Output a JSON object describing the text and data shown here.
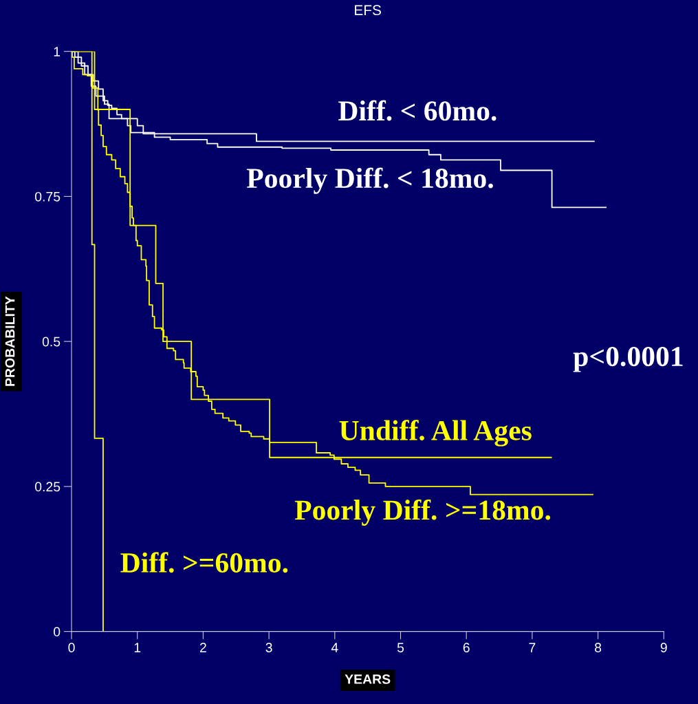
{
  "chart_data": {
    "type": "step",
    "title": "EFS",
    "xlabel": "YEARS",
    "ylabel": "PROBABILITY",
    "xlim": [
      0,
      9
    ],
    "ylim": [
      0,
      1
    ],
    "xticks": [
      0,
      1,
      2,
      3,
      4,
      5,
      6,
      7,
      8,
      9
    ],
    "yticks": [
      0,
      0.25,
      0.5,
      0.75,
      1
    ],
    "grid": false,
    "legend": false,
    "marker": "none",
    "line_style": "solid",
    "annotations": [
      "p<0.0001"
    ],
    "series": [
      {
        "name": "Diff. < 60mo.",
        "color": "#ffffff",
        "x": [
          0,
          0.1,
          0.2,
          0.3,
          0.37,
          0.5,
          0.57,
          1.0,
          1.09,
          2.81,
          7.94
        ],
        "values": [
          1,
          0.98,
          0.96,
          0.94,
          0.923,
          0.909,
          0.884,
          0.872,
          0.858,
          0.845,
          0.845
        ]
      },
      {
        "name": "Poorly Diff. < 18mo.",
        "color": "#ffffff",
        "x": [
          0,
          0.05,
          0.15,
          0.25,
          0.33,
          0.41,
          0.48,
          0.55,
          0.61,
          0.69,
          0.76,
          0.85,
          0.9,
          1.26,
          1.5,
          2.06,
          2.22,
          3.2,
          3.94,
          5.43,
          5.61,
          6.52,
          7.3,
          8.12
        ],
        "values": [
          1,
          0.99,
          0.975,
          0.96,
          0.949,
          0.935,
          0.915,
          0.907,
          0.902,
          0.891,
          0.884,
          0.872,
          0.86,
          0.852,
          0.848,
          0.841,
          0.835,
          0.833,
          0.83,
          0.822,
          0.813,
          0.795,
          0.731,
          0.731
        ]
      },
      {
        "name": "Undiff. All Ages",
        "color": "#ffff00",
        "x": [
          0,
          0.35,
          0.89,
          1.28,
          1.39,
          1.82,
          3.01,
          7.29
        ],
        "values": [
          1,
          0.9,
          0.7,
          0.6,
          0.5,
          0.4,
          0.3,
          0.3
        ]
      },
      {
        "name": "Poorly Diff. >=18mo.",
        "color": "#ffff00",
        "x": [
          0,
          0.01,
          0.04,
          0.17,
          0.24,
          0.32,
          0.4,
          0.41,
          0.45,
          0.48,
          0.53,
          0.61,
          0.67,
          0.74,
          0.81,
          0.85,
          0.89,
          0.92,
          0.94,
          0.98,
          1.0,
          1.06,
          1.13,
          1.14,
          1.18,
          1.23,
          1.26,
          1.37,
          1.4,
          1.45,
          1.55,
          1.58,
          1.7,
          1.71,
          1.81,
          1.89,
          1.91,
          2.0,
          2.02,
          2.08,
          2.13,
          2.18,
          2.3,
          2.39,
          2.49,
          2.57,
          2.7,
          2.73,
          2.92,
          3.01,
          3.72,
          3.93,
          3.99,
          4.1,
          4.2,
          4.31,
          4.39,
          4.52,
          4.77,
          6.06,
          7.92
        ],
        "values": [
          1,
          0.99,
          0.97,
          0.96,
          0.958,
          0.937,
          0.899,
          0.873,
          0.855,
          0.836,
          0.822,
          0.813,
          0.798,
          0.784,
          0.772,
          0.757,
          0.733,
          0.713,
          0.7,
          0.674,
          0.665,
          0.641,
          0.63,
          0.605,
          0.563,
          0.543,
          0.523,
          0.52,
          0.508,
          0.488,
          0.484,
          0.469,
          0.463,
          0.454,
          0.448,
          0.44,
          0.422,
          0.416,
          0.407,
          0.397,
          0.383,
          0.376,
          0.368,
          0.363,
          0.356,
          0.345,
          0.342,
          0.336,
          0.332,
          0.326,
          0.308,
          0.304,
          0.297,
          0.289,
          0.283,
          0.278,
          0.27,
          0.256,
          0.25,
          0.236,
          0.236
        ]
      },
      {
        "name": "Diff. >=60mo.",
        "color": "#ffff00",
        "x": [
          0,
          0.31,
          0.35,
          0.48
        ],
        "values": [
          1,
          0.667,
          0.333,
          0
        ]
      }
    ]
  }
}
